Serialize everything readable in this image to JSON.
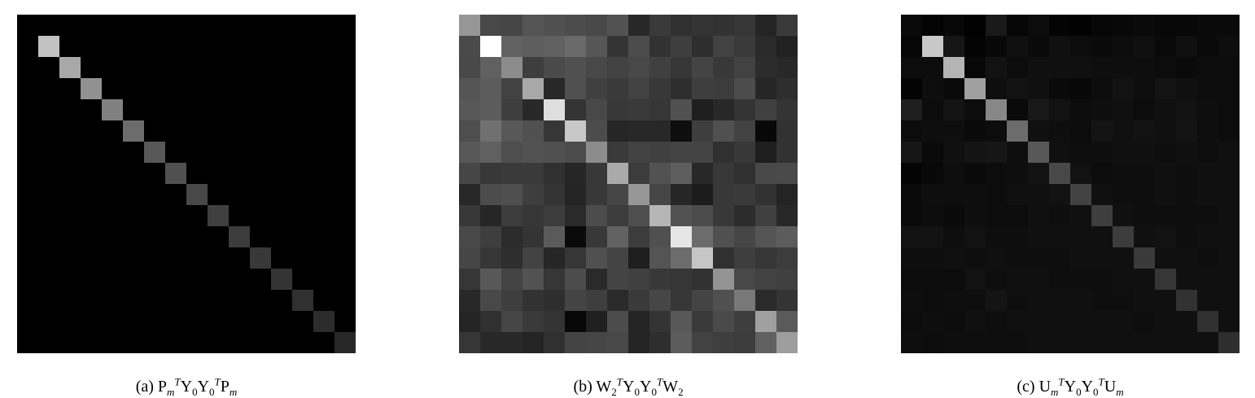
{
  "figures": [
    {
      "id": "a",
      "caption": {
        "label": "(a)",
        "parts": [
          "P",
          "m",
          "T",
          "Y",
          "0",
          "Y",
          "0",
          "T",
          "P",
          "m"
        ]
      },
      "matrix": [
        [
          0,
          0,
          0,
          0,
          0,
          0,
          0,
          0,
          0,
          0,
          0,
          0,
          0,
          0,
          0,
          0
        ],
        [
          0,
          194,
          0,
          0,
          0,
          0,
          0,
          0,
          0,
          0,
          0,
          0,
          0,
          0,
          0,
          0
        ],
        [
          0,
          0,
          168,
          0,
          0,
          0,
          0,
          0,
          0,
          0,
          0,
          0,
          0,
          0,
          0,
          0
        ],
        [
          0,
          0,
          0,
          145,
          0,
          0,
          0,
          0,
          0,
          0,
          0,
          0,
          0,
          0,
          0,
          0
        ],
        [
          0,
          0,
          0,
          0,
          128,
          0,
          0,
          0,
          0,
          0,
          0,
          0,
          0,
          0,
          0,
          0
        ],
        [
          0,
          0,
          0,
          0,
          0,
          108,
          0,
          0,
          0,
          0,
          0,
          0,
          0,
          0,
          0,
          0
        ],
        [
          0,
          0,
          0,
          0,
          0,
          0,
          88,
          0,
          0,
          0,
          0,
          0,
          0,
          0,
          0,
          0
        ],
        [
          0,
          0,
          0,
          0,
          0,
          0,
          0,
          80,
          0,
          0,
          0,
          0,
          0,
          0,
          0,
          0
        ],
        [
          0,
          0,
          0,
          0,
          0,
          0,
          0,
          0,
          72,
          0,
          0,
          0,
          0,
          0,
          0,
          0
        ],
        [
          0,
          0,
          0,
          0,
          0,
          0,
          0,
          0,
          0,
          64,
          0,
          0,
          0,
          0,
          0,
          0
        ],
        [
          0,
          0,
          0,
          0,
          0,
          0,
          0,
          0,
          0,
          0,
          60,
          0,
          0,
          0,
          0,
          0
        ],
        [
          0,
          0,
          0,
          0,
          0,
          0,
          0,
          0,
          0,
          0,
          0,
          56,
          0,
          0,
          0,
          0
        ],
        [
          0,
          0,
          0,
          0,
          0,
          0,
          0,
          0,
          0,
          0,
          0,
          0,
          52,
          0,
          0,
          0
        ],
        [
          0,
          0,
          0,
          0,
          0,
          0,
          0,
          0,
          0,
          0,
          0,
          0,
          0,
          48,
          0,
          0
        ],
        [
          0,
          0,
          0,
          0,
          0,
          0,
          0,
          0,
          0,
          0,
          0,
          0,
          0,
          0,
          44,
          0
        ],
        [
          0,
          0,
          0,
          0,
          0,
          0,
          0,
          0,
          0,
          0,
          0,
          0,
          0,
          0,
          0,
          40
        ]
      ]
    },
    {
      "id": "b",
      "caption": {
        "label": "(b)",
        "parts": [
          "W",
          "2",
          "T",
          "Y",
          "0",
          "Y",
          "0",
          "T",
          "W",
          "2"
        ]
      },
      "matrix": [
        [
          150,
          72,
          70,
          84,
          80,
          76,
          72,
          82,
          40,
          58,
          48,
          52,
          50,
          54,
          36,
          58
        ],
        [
          74,
          255,
          98,
          94,
          96,
          106,
          86,
          52,
          76,
          50,
          62,
          46,
          66,
          58,
          42,
          34
        ],
        [
          72,
          96,
          140,
          62,
          74,
          80,
          72,
          66,
          72,
          64,
          54,
          68,
          56,
          66,
          44,
          40
        ],
        [
          84,
          92,
          66,
          168,
          40,
          80,
          64,
          58,
          66,
          56,
          46,
          62,
          60,
          76,
          38,
          46
        ],
        [
          88,
          92,
          62,
          40,
          222,
          52,
          72,
          56,
          58,
          54,
          80,
          30,
          40,
          52,
          64,
          52
        ],
        [
          78,
          112,
          88,
          80,
          54,
          200,
          76,
          38,
          40,
          40,
          14,
          62,
          80,
          66,
          8,
          50
        ],
        [
          88,
          96,
          78,
          82,
          80,
          76,
          140,
          58,
          66,
          64,
          68,
          68,
          48,
          56,
          30,
          50
        ],
        [
          70,
          56,
          58,
          58,
          48,
          38,
          56,
          170,
          60,
          82,
          94,
          40,
          56,
          48,
          72,
          74
        ],
        [
          40,
          76,
          78,
          62,
          52,
          36,
          56,
          70,
          150,
          70,
          38,
          28,
          56,
          58,
          50,
          36
        ],
        [
          56,
          38,
          60,
          54,
          60,
          42,
          76,
          60,
          78,
          182,
          82,
          76,
          56,
          44,
          64,
          40
        ],
        [
          72,
          62,
          44,
          52,
          90,
          10,
          56,
          98,
          60,
          80,
          230,
          108,
          80,
          70,
          84,
          92
        ],
        [
          70,
          54,
          46,
          66,
          38,
          54,
          80,
          68,
          30,
          84,
          108,
          198,
          48,
          62,
          54,
          60
        ],
        [
          54,
          88,
          68,
          82,
          54,
          76,
          42,
          68,
          64,
          56,
          54,
          50,
          148,
          72,
          66,
          64
        ],
        [
          40,
          72,
          62,
          50,
          46,
          68,
          62,
          42,
          58,
          70,
          54,
          68,
          80,
          120,
          42,
          52
        ],
        [
          36,
          48,
          70,
          58,
          52,
          8,
          32,
          76,
          36,
          52,
          88,
          58,
          74,
          62,
          160,
          90
        ],
        [
          54,
          40,
          40,
          36,
          48,
          68,
          70,
          72,
          36,
          46,
          92,
          66,
          62,
          60,
          96,
          158
        ]
      ]
    },
    {
      "id": "c",
      "caption": {
        "label": "(c)",
        "parts": [
          "U",
          "m",
          "T",
          "Y",
          "0",
          "Y",
          "0",
          "T",
          "U",
          "m"
        ]
      },
      "matrix": [
        [
          10,
          4,
          8,
          2,
          26,
          6,
          12,
          4,
          2,
          6,
          8,
          10,
          8,
          8,
          10,
          10
        ],
        [
          6,
          200,
          22,
          4,
          8,
          16,
          10,
          16,
          12,
          10,
          12,
          16,
          10,
          16,
          10,
          14
        ],
        [
          12,
          12,
          180,
          8,
          18,
          12,
          16,
          16,
          16,
          14,
          14,
          14,
          12,
          10,
          12,
          12
        ],
        [
          4,
          14,
          10,
          160,
          14,
          18,
          16,
          10,
          8,
          12,
          18,
          14,
          20,
          16,
          12,
          12
        ],
        [
          30,
          12,
          20,
          12,
          135,
          10,
          24,
          18,
          12,
          14,
          16,
          12,
          16,
          18,
          14,
          12
        ],
        [
          12,
          14,
          14,
          10,
          12,
          108,
          16,
          14,
          12,
          20,
          16,
          18,
          16,
          20,
          14,
          12
        ],
        [
          22,
          10,
          16,
          20,
          22,
          14,
          88,
          16,
          14,
          14,
          16,
          16,
          14,
          16,
          14,
          16
        ],
        [
          4,
          8,
          14,
          10,
          12,
          14,
          18,
          72,
          18,
          12,
          14,
          14,
          16,
          14,
          16,
          16
        ],
        [
          10,
          14,
          14,
          14,
          12,
          16,
          16,
          18,
          66,
          16,
          14,
          14,
          16,
          14,
          16,
          16
        ],
        [
          10,
          12,
          10,
          14,
          12,
          12,
          16,
          14,
          16,
          62,
          16,
          14,
          14,
          14,
          14,
          16
        ],
        [
          18,
          18,
          14,
          18,
          14,
          14,
          16,
          16,
          16,
          16,
          60,
          16,
          18,
          14,
          16,
          16
        ],
        [
          14,
          14,
          16,
          14,
          16,
          14,
          14,
          14,
          16,
          16,
          16,
          58,
          16,
          16,
          14,
          16
        ],
        [
          12,
          12,
          12,
          18,
          14,
          16,
          16,
          14,
          14,
          14,
          16,
          16,
          54,
          16,
          16,
          16
        ],
        [
          14,
          12,
          14,
          14,
          20,
          14,
          16,
          16,
          16,
          14,
          14,
          16,
          16,
          50,
          16,
          16
        ],
        [
          12,
          14,
          12,
          16,
          14,
          16,
          16,
          16,
          16,
          16,
          16,
          14,
          16,
          16,
          48,
          16
        ],
        [
          14,
          12,
          14,
          14,
          14,
          14,
          16,
          16,
          16,
          16,
          16,
          16,
          16,
          16,
          16,
          46
        ]
      ]
    }
  ]
}
